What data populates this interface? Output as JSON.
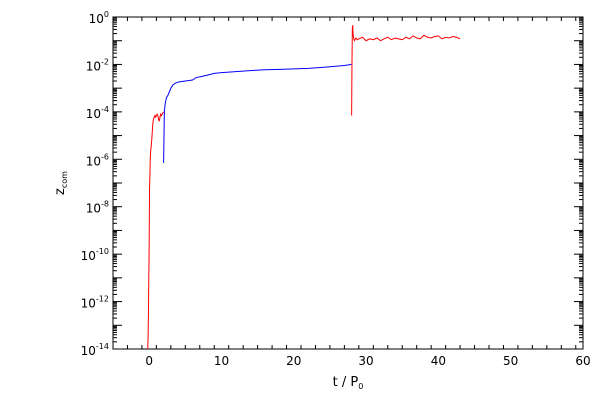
{
  "chart_data": {
    "type": "line",
    "title": "",
    "xlabel": {
      "main": "t / P",
      "subscript": "0"
    },
    "ylabel": {
      "main": "z",
      "subscript": "com"
    },
    "xlim": [
      -5,
      60
    ],
    "ylim": [
      1e-14,
      1
    ],
    "yscale": "log",
    "grid": false,
    "legend": "none",
    "x_ticks": [
      0,
      10,
      20,
      30,
      40,
      50,
      60
    ],
    "x_tick_labels": [
      "0",
      "10",
      "20",
      "30",
      "40",
      "50",
      "60"
    ],
    "y_ticks": [
      1e-14,
      1e-12,
      1e-10,
      1e-08,
      1e-06,
      0.0001,
      0.01,
      1
    ],
    "y_tick_labels": [
      {
        "base": "10",
        "exp": "-14"
      },
      {
        "base": "10",
        "exp": "-12"
      },
      {
        "base": "10",
        "exp": "-10"
      },
      {
        "base": "10",
        "exp": "-8"
      },
      {
        "base": "10",
        "exp": "-6"
      },
      {
        "base": "10",
        "exp": "-4"
      },
      {
        "base": "10",
        "exp": "-2"
      },
      {
        "base": "10",
        "exp": "0"
      }
    ],
    "series": [
      {
        "color": "#ff0000",
        "x": [
          -0.2,
          -0.15,
          -0.1,
          -0.05,
          0.0,
          0.05,
          0.1,
          0.15,
          0.2,
          0.3,
          0.4,
          0.5,
          0.6,
          0.7,
          0.8,
          0.9,
          1.0,
          1.1,
          1.2,
          1.3,
          1.4,
          1.5,
          1.6,
          1.7,
          1.8,
          1.9,
          2.0
        ],
        "y": [
          1e-14,
          3e-14,
          3e-13,
          1e-11,
          2e-10,
          5e-08,
          2e-07,
          1e-06,
          2e-06,
          4e-06,
          1e-05,
          3e-05,
          5e-05,
          6e-05,
          7e-05,
          6e-05,
          7e-05,
          8e-05,
          7e-05,
          5e-05,
          4e-05,
          6e-05,
          8e-05,
          7e-05,
          8e-05,
          9e-05,
          0.0001
        ]
      },
      {
        "color": "#0000ff",
        "x": [
          2.0,
          2.1,
          2.2,
          2.3,
          2.4,
          2.6,
          2.8,
          3.0,
          3.3,
          3.6,
          4.0,
          4.5,
          5.0,
          6.0,
          6.5,
          7.0,
          8.0,
          9.0,
          10.0,
          12.0,
          14.0,
          16.0,
          18.0,
          20.0,
          22.0,
          24.0,
          26.0,
          27.0,
          28.0
        ],
        "y": [
          7e-07,
          0.0001,
          0.0002,
          0.0003,
          0.0004,
          0.0005,
          0.0007,
          0.001,
          0.0014,
          0.0016,
          0.0018,
          0.0019,
          0.002,
          0.0022,
          0.0028,
          0.003,
          0.0035,
          0.0042,
          0.0045,
          0.005,
          0.0055,
          0.006,
          0.0062,
          0.0065,
          0.0068,
          0.0075,
          0.0085,
          0.009,
          0.01
        ]
      },
      {
        "color": "#ff0000",
        "x": [
          28.0,
          28.05,
          28.1,
          28.15,
          28.2,
          28.3,
          28.4,
          28.6,
          28.8,
          29.0,
          29.5,
          30.0,
          30.5,
          31.0,
          31.5,
          32.0,
          32.5,
          33.0,
          33.5,
          34.0,
          34.5,
          35.0,
          35.5,
          36.0,
          36.5,
          37.0,
          37.5,
          38.0,
          38.5,
          39.0,
          39.5,
          40.0,
          40.5,
          41.0,
          41.5,
          42.0,
          42.5,
          43.0
        ],
        "y": [
          7e-05,
          0.01,
          0.35,
          0.45,
          0.2,
          0.12,
          0.1,
          0.13,
          0.11,
          0.12,
          0.14,
          0.1,
          0.12,
          0.11,
          0.13,
          0.1,
          0.12,
          0.14,
          0.11,
          0.13,
          0.12,
          0.11,
          0.14,
          0.12,
          0.16,
          0.13,
          0.12,
          0.17,
          0.14,
          0.13,
          0.15,
          0.16,
          0.12,
          0.14,
          0.13,
          0.15,
          0.14,
          0.12
        ]
      }
    ]
  }
}
